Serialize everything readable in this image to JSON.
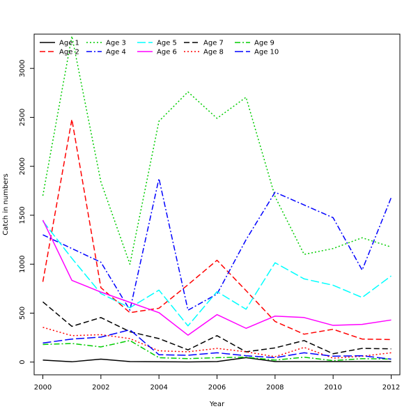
{
  "chart_data": {
    "type": "line",
    "xlabel": "Year",
    "ylabel": "Catch in numbers",
    "xlim": [
      1999.7,
      2012.3
    ],
    "ylim": [
      -130,
      3350
    ],
    "xticks": [
      2000,
      2002,
      2004,
      2006,
      2008,
      2010,
      2012
    ],
    "yticks": [
      0,
      500,
      1000,
      1500,
      2000,
      2500,
      3000
    ],
    "grid": false,
    "legend_position": "top-left",
    "x": [
      2000,
      2001,
      2002,
      2003,
      2004,
      2005,
      2006,
      2007,
      2008,
      2009,
      2010,
      2011,
      2012
    ],
    "series": [
      {
        "name": "Age 1",
        "color": "#000000",
        "dash": "",
        "values": [
          20,
          3,
          30,
          5,
          3,
          2,
          5,
          45,
          5,
          5,
          5,
          5,
          5
        ]
      },
      {
        "name": "Age 2",
        "color": "#ff0000",
        "dash": "8,4",
        "values": [
          820,
          2480,
          760,
          505,
          550,
          790,
          1040,
          730,
          415,
          285,
          335,
          235,
          230
        ]
      },
      {
        "name": "Age 3",
        "color": "#00cc00",
        "dash": "2,3",
        "values": [
          1700,
          3330,
          1840,
          1000,
          2460,
          2760,
          2490,
          2705,
          1690,
          1100,
          1160,
          1270,
          1175
        ]
      },
      {
        "name": "Age 4",
        "color": "#0000ff",
        "dash": "8,3,2,3",
        "values": [
          1300,
          1160,
          1020,
          530,
          1875,
          530,
          695,
          1250,
          1735,
          1605,
          1475,
          940,
          1680
        ]
      },
      {
        "name": "Age 5",
        "color": "#00ffff",
        "dash": "12,4",
        "values": [
          1440,
          1060,
          700,
          555,
          735,
          370,
          720,
          540,
          1015,
          850,
          785,
          660,
          880
        ]
      },
      {
        "name": "Age 6",
        "color": "#ff00ff",
        "dash": "",
        "values": [
          1450,
          835,
          715,
          610,
          505,
          275,
          485,
          345,
          470,
          455,
          375,
          385,
          430
        ]
      },
      {
        "name": "Age 7",
        "color": "#000000",
        "dash": "8,4",
        "values": [
          615,
          365,
          455,
          310,
          240,
          125,
          270,
          105,
          145,
          220,
          85,
          140,
          135
        ]
      },
      {
        "name": "Age 8",
        "color": "#ff0000",
        "dash": "2,3",
        "values": [
          355,
          270,
          280,
          240,
          115,
          105,
          140,
          105,
          55,
          150,
          40,
          60,
          95
        ]
      },
      {
        "name": "Age 9",
        "color": "#00cc00",
        "dash": "8,3,2,3",
        "values": [
          180,
          190,
          155,
          220,
          45,
          35,
          45,
          50,
          20,
          50,
          15,
          35,
          30
        ]
      },
      {
        "name": "Age 10",
        "color": "#0000ff",
        "dash": "12,4",
        "values": [
          195,
          235,
          255,
          330,
          75,
          70,
          95,
          65,
          45,
          95,
          60,
          65,
          30
        ]
      }
    ]
  }
}
